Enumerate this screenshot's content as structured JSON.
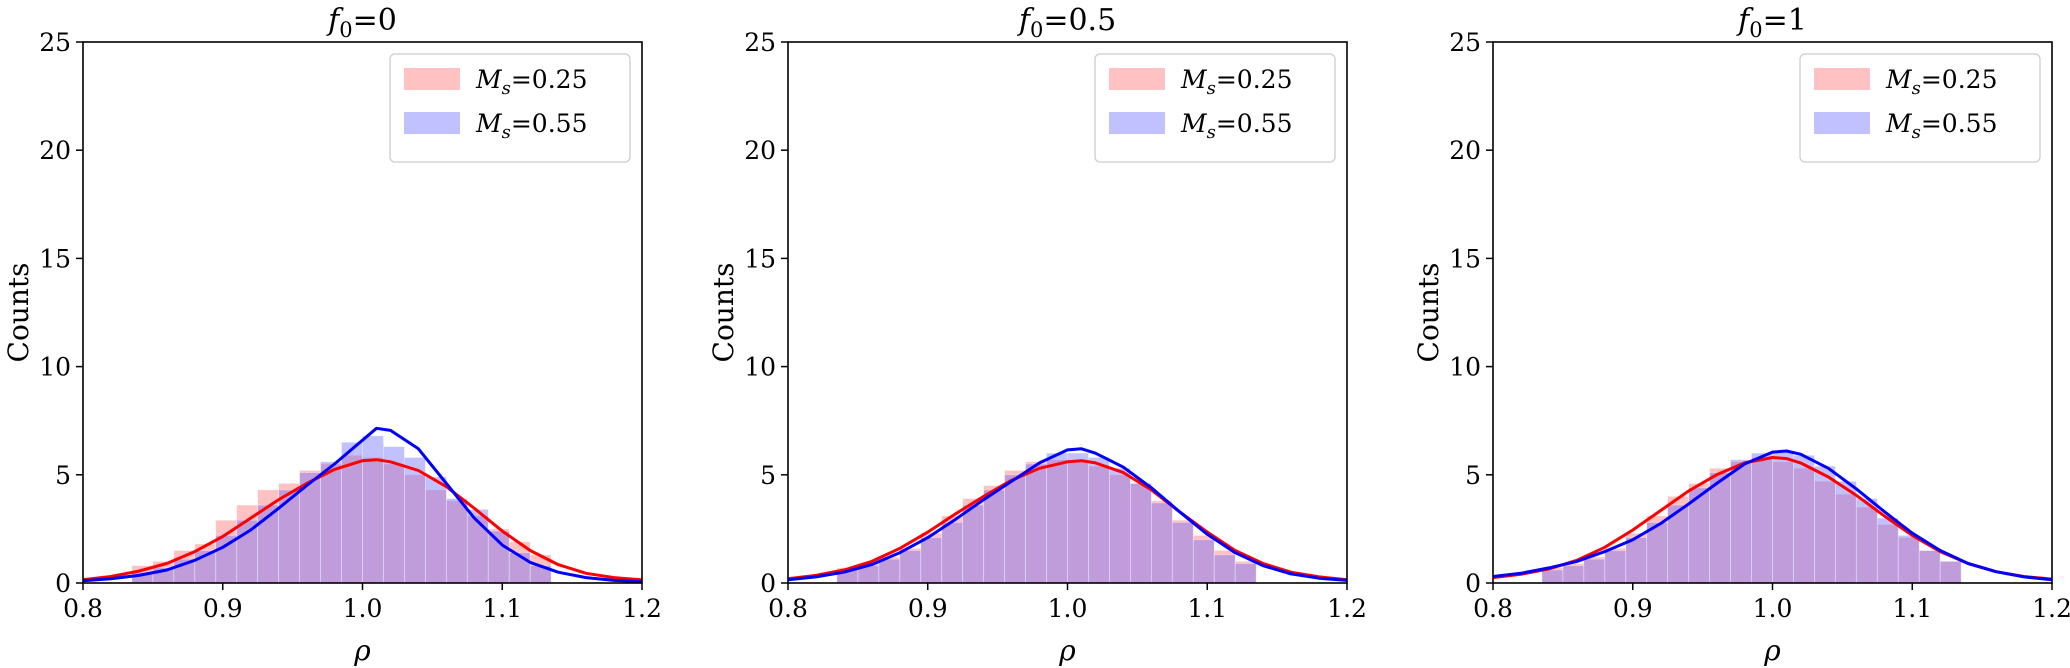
{
  "chart_data": [
    {
      "type": "bar",
      "title": "f0=0",
      "title_main": "f",
      "title_sub": "0",
      "title_rest": "=0",
      "xlabel": "ρ",
      "ylabel": "Counts",
      "xlim": [
        0.8,
        1.2
      ],
      "ylim": [
        0,
        25
      ],
      "xticks": [
        "0.8",
        "0.9",
        "1.0",
        "1.1",
        "1.2"
      ],
      "yticks": [
        "0",
        "5",
        "10",
        "15",
        "20",
        "25"
      ],
      "legend_position": "upper right",
      "grid": false,
      "bin_edges": [
        0.835,
        0.85,
        0.865,
        0.88,
        0.895,
        0.91,
        0.925,
        0.94,
        0.955,
        0.97,
        0.985,
        1.0,
        1.015,
        1.03,
        1.045,
        1.06,
        1.075,
        1.09,
        1.105,
        1.12,
        1.135
      ],
      "series": [
        {
          "name": "Ms=0.25",
          "name_main": "M",
          "name_sub": "s",
          "name_rest": "=0.25",
          "color": "#ff0000",
          "fill": "rgba(255,100,100,0.4)",
          "hist": [
            0.8,
            1.0,
            1.5,
            1.8,
            2.9,
            3.6,
            4.3,
            4.6,
            5.2,
            5.5,
            5.9,
            5.8,
            5.5,
            5.0,
            4.3,
            3.8,
            3.1,
            2.5,
            1.9,
            1.3
          ],
          "kde": [
            [
              0.8,
              0.15
            ],
            [
              0.82,
              0.3
            ],
            [
              0.84,
              0.55
            ],
            [
              0.86,
              0.9
            ],
            [
              0.88,
              1.45
            ],
            [
              0.9,
              2.15
            ],
            [
              0.92,
              3.0
            ],
            [
              0.94,
              3.85
            ],
            [
              0.96,
              4.6
            ],
            [
              0.98,
              5.25
            ],
            [
              1.0,
              5.65
            ],
            [
              1.01,
              5.7
            ],
            [
              1.02,
              5.6
            ],
            [
              1.04,
              5.2
            ],
            [
              1.06,
              4.45
            ],
            [
              1.08,
              3.45
            ],
            [
              1.1,
              2.4
            ],
            [
              1.12,
              1.5
            ],
            [
              1.14,
              0.85
            ],
            [
              1.16,
              0.45
            ],
            [
              1.18,
              0.25
            ],
            [
              1.2,
              0.15
            ]
          ]
        },
        {
          "name": "Ms=0.55",
          "name_main": "M",
          "name_sub": "s",
          "name_rest": "=0.55",
          "color": "#0000ff",
          "fill": "rgba(100,100,255,0.4)",
          "hist": [
            0.5,
            0.7,
            1.1,
            1.5,
            2.2,
            2.9,
            3.6,
            4.3,
            5.1,
            5.6,
            6.5,
            6.8,
            6.3,
            5.8,
            4.9,
            3.9,
            3.4,
            2.4,
            1.4,
            0.8
          ],
          "kde": [
            [
              0.8,
              0.1
            ],
            [
              0.82,
              0.2
            ],
            [
              0.84,
              0.35
            ],
            [
              0.86,
              0.6
            ],
            [
              0.88,
              1.05
            ],
            [
              0.9,
              1.65
            ],
            [
              0.92,
              2.45
            ],
            [
              0.94,
              3.45
            ],
            [
              0.96,
              4.5
            ],
            [
              0.98,
              5.5
            ],
            [
              1.0,
              6.6
            ],
            [
              1.01,
              7.15
            ],
            [
              1.02,
              7.05
            ],
            [
              1.04,
              6.2
            ],
            [
              1.06,
              4.6
            ],
            [
              1.08,
              3.0
            ],
            [
              1.1,
              1.75
            ],
            [
              1.12,
              0.95
            ],
            [
              1.14,
              0.5
            ],
            [
              1.16,
              0.25
            ],
            [
              1.18,
              0.12
            ],
            [
              1.2,
              0.06
            ]
          ]
        }
      ]
    },
    {
      "type": "bar",
      "title": "f0=0.5",
      "title_main": "f",
      "title_sub": "0",
      "title_rest": "=0.5",
      "xlabel": "ρ",
      "ylabel": "Counts",
      "xlim": [
        0.8,
        1.2
      ],
      "ylim": [
        0,
        25
      ],
      "xticks": [
        "0.8",
        "0.9",
        "1.0",
        "1.1",
        "1.2"
      ],
      "yticks": [
        "0",
        "5",
        "10",
        "15",
        "20",
        "25"
      ],
      "legend_position": "upper right",
      "grid": false,
      "bin_edges": [
        0.835,
        0.85,
        0.865,
        0.88,
        0.895,
        0.91,
        0.925,
        0.94,
        0.955,
        0.97,
        0.985,
        1.0,
        1.015,
        1.03,
        1.045,
        1.06,
        1.075,
        1.09,
        1.105,
        1.12,
        1.135
      ],
      "series": [
        {
          "name": "Ms=0.25",
          "name_main": "M",
          "name_sub": "s",
          "name_rest": "=0.25",
          "color": "#ff0000",
          "fill": "rgba(255,100,100,0.4)",
          "hist": [
            0.7,
            0.9,
            1.2,
            1.6,
            2.3,
            3.1,
            3.9,
            4.5,
            5.2,
            5.6,
            5.7,
            5.6,
            5.4,
            5.0,
            4.6,
            3.8,
            2.9,
            2.2,
            1.5,
            1.0
          ],
          "kde": [
            [
              0.8,
              0.2
            ],
            [
              0.82,
              0.35
            ],
            [
              0.84,
              0.6
            ],
            [
              0.86,
              1.0
            ],
            [
              0.88,
              1.6
            ],
            [
              0.9,
              2.35
            ],
            [
              0.92,
              3.2
            ],
            [
              0.94,
              4.0
            ],
            [
              0.96,
              4.75
            ],
            [
              0.98,
              5.3
            ],
            [
              1.0,
              5.6
            ],
            [
              1.01,
              5.65
            ],
            [
              1.02,
              5.55
            ],
            [
              1.04,
              5.1
            ],
            [
              1.06,
              4.3
            ],
            [
              1.08,
              3.3
            ],
            [
              1.1,
              2.35
            ],
            [
              1.12,
              1.5
            ],
            [
              1.14,
              0.9
            ],
            [
              1.16,
              0.5
            ],
            [
              1.18,
              0.28
            ],
            [
              1.2,
              0.15
            ]
          ]
        },
        {
          "name": "Ms=0.55",
          "name_main": "M",
          "name_sub": "s",
          "name_rest": "=0.55",
          "color": "#0000ff",
          "fill": "rgba(100,100,255,0.4)",
          "hist": [
            0.6,
            0.8,
            1.1,
            1.5,
            2.1,
            2.8,
            3.6,
            4.3,
            5.0,
            5.5,
            6.0,
            6.0,
            5.8,
            5.3,
            4.6,
            3.7,
            2.8,
            2.0,
            1.3,
            0.9
          ],
          "kde": [
            [
              0.8,
              0.15
            ],
            [
              0.82,
              0.28
            ],
            [
              0.84,
              0.5
            ],
            [
              0.86,
              0.85
            ],
            [
              0.88,
              1.4
            ],
            [
              0.9,
              2.1
            ],
            [
              0.92,
              2.95
            ],
            [
              0.94,
              3.85
            ],
            [
              0.96,
              4.7
            ],
            [
              0.98,
              5.55
            ],
            [
              1.0,
              6.15
            ],
            [
              1.01,
              6.2
            ],
            [
              1.02,
              6.0
            ],
            [
              1.04,
              5.35
            ],
            [
              1.06,
              4.4
            ],
            [
              1.08,
              3.3
            ],
            [
              1.1,
              2.25
            ],
            [
              1.12,
              1.4
            ],
            [
              1.14,
              0.8
            ],
            [
              1.16,
              0.42
            ],
            [
              1.18,
              0.22
            ],
            [
              1.2,
              0.12
            ]
          ]
        }
      ]
    },
    {
      "type": "bar",
      "title": "f0=1",
      "title_main": "f",
      "title_sub": "0",
      "title_rest": "=1",
      "xlabel": "ρ",
      "ylabel": "Counts",
      "xlim": [
        0.8,
        1.2
      ],
      "ylim": [
        0,
        25
      ],
      "xticks": [
        "0.8",
        "0.9",
        "1.0",
        "1.1",
        "1.2"
      ],
      "yticks": [
        "0",
        "5",
        "10",
        "15",
        "20",
        "25"
      ],
      "legend_position": "upper right",
      "grid": false,
      "bin_edges": [
        0.835,
        0.85,
        0.865,
        0.88,
        0.895,
        0.91,
        0.925,
        0.94,
        0.955,
        0.97,
        0.985,
        1.0,
        1.015,
        1.03,
        1.045,
        1.06,
        1.075,
        1.09,
        1.105,
        1.12,
        1.135
      ],
      "series": [
        {
          "name": "Ms=0.25",
          "name_main": "M",
          "name_sub": "s",
          "name_rest": "=0.25",
          "color": "#ff0000",
          "fill": "rgba(255,100,100,0.4)",
          "hist": [
            0.7,
            0.9,
            1.2,
            1.6,
            2.3,
            3.1,
            4.0,
            4.6,
            5.3,
            5.6,
            5.8,
            5.6,
            5.3,
            4.7,
            4.1,
            3.5,
            2.7,
            2.1,
            1.5,
            1.0
          ],
          "kde": [
            [
              0.8,
              0.25
            ],
            [
              0.82,
              0.4
            ],
            [
              0.84,
              0.65
            ],
            [
              0.86,
              1.05
            ],
            [
              0.88,
              1.65
            ],
            [
              0.9,
              2.45
            ],
            [
              0.92,
              3.35
            ],
            [
              0.94,
              4.25
            ],
            [
              0.96,
              5.0
            ],
            [
              0.98,
              5.55
            ],
            [
              1.0,
              5.8
            ],
            [
              1.01,
              5.75
            ],
            [
              1.02,
              5.55
            ],
            [
              1.04,
              4.9
            ],
            [
              1.06,
              4.05
            ],
            [
              1.08,
              3.1
            ],
            [
              1.1,
              2.2
            ],
            [
              1.12,
              1.45
            ],
            [
              1.14,
              0.9
            ],
            [
              1.16,
              0.52
            ],
            [
              1.18,
              0.3
            ],
            [
              1.2,
              0.18
            ]
          ]
        },
        {
          "name": "Ms=0.55",
          "name_main": "M",
          "name_sub": "s",
          "name_rest": "=0.55",
          "color": "#0000ff",
          "fill": "rgba(100,100,255,0.4)",
          "hist": [
            0.6,
            0.8,
            1.1,
            1.5,
            2.1,
            2.8,
            3.6,
            4.4,
            5.1,
            5.7,
            6.0,
            6.1,
            5.9,
            5.4,
            4.7,
            3.9,
            3.0,
            2.2,
            1.5,
            1.0
          ],
          "kde": [
            [
              0.8,
              0.3
            ],
            [
              0.82,
              0.45
            ],
            [
              0.84,
              0.7
            ],
            [
              0.86,
              1.0
            ],
            [
              0.88,
              1.45
            ],
            [
              0.9,
              2.0
            ],
            [
              0.92,
              2.75
            ],
            [
              0.94,
              3.65
            ],
            [
              0.96,
              4.6
            ],
            [
              0.98,
              5.5
            ],
            [
              1.0,
              6.05
            ],
            [
              1.01,
              6.1
            ],
            [
              1.02,
              5.95
            ],
            [
              1.04,
              5.3
            ],
            [
              1.06,
              4.35
            ],
            [
              1.08,
              3.3
            ],
            [
              1.1,
              2.3
            ],
            [
              1.12,
              1.5
            ],
            [
              1.14,
              0.9
            ],
            [
              1.16,
              0.52
            ],
            [
              1.18,
              0.28
            ],
            [
              1.2,
              0.15
            ]
          ]
        }
      ]
    }
  ]
}
